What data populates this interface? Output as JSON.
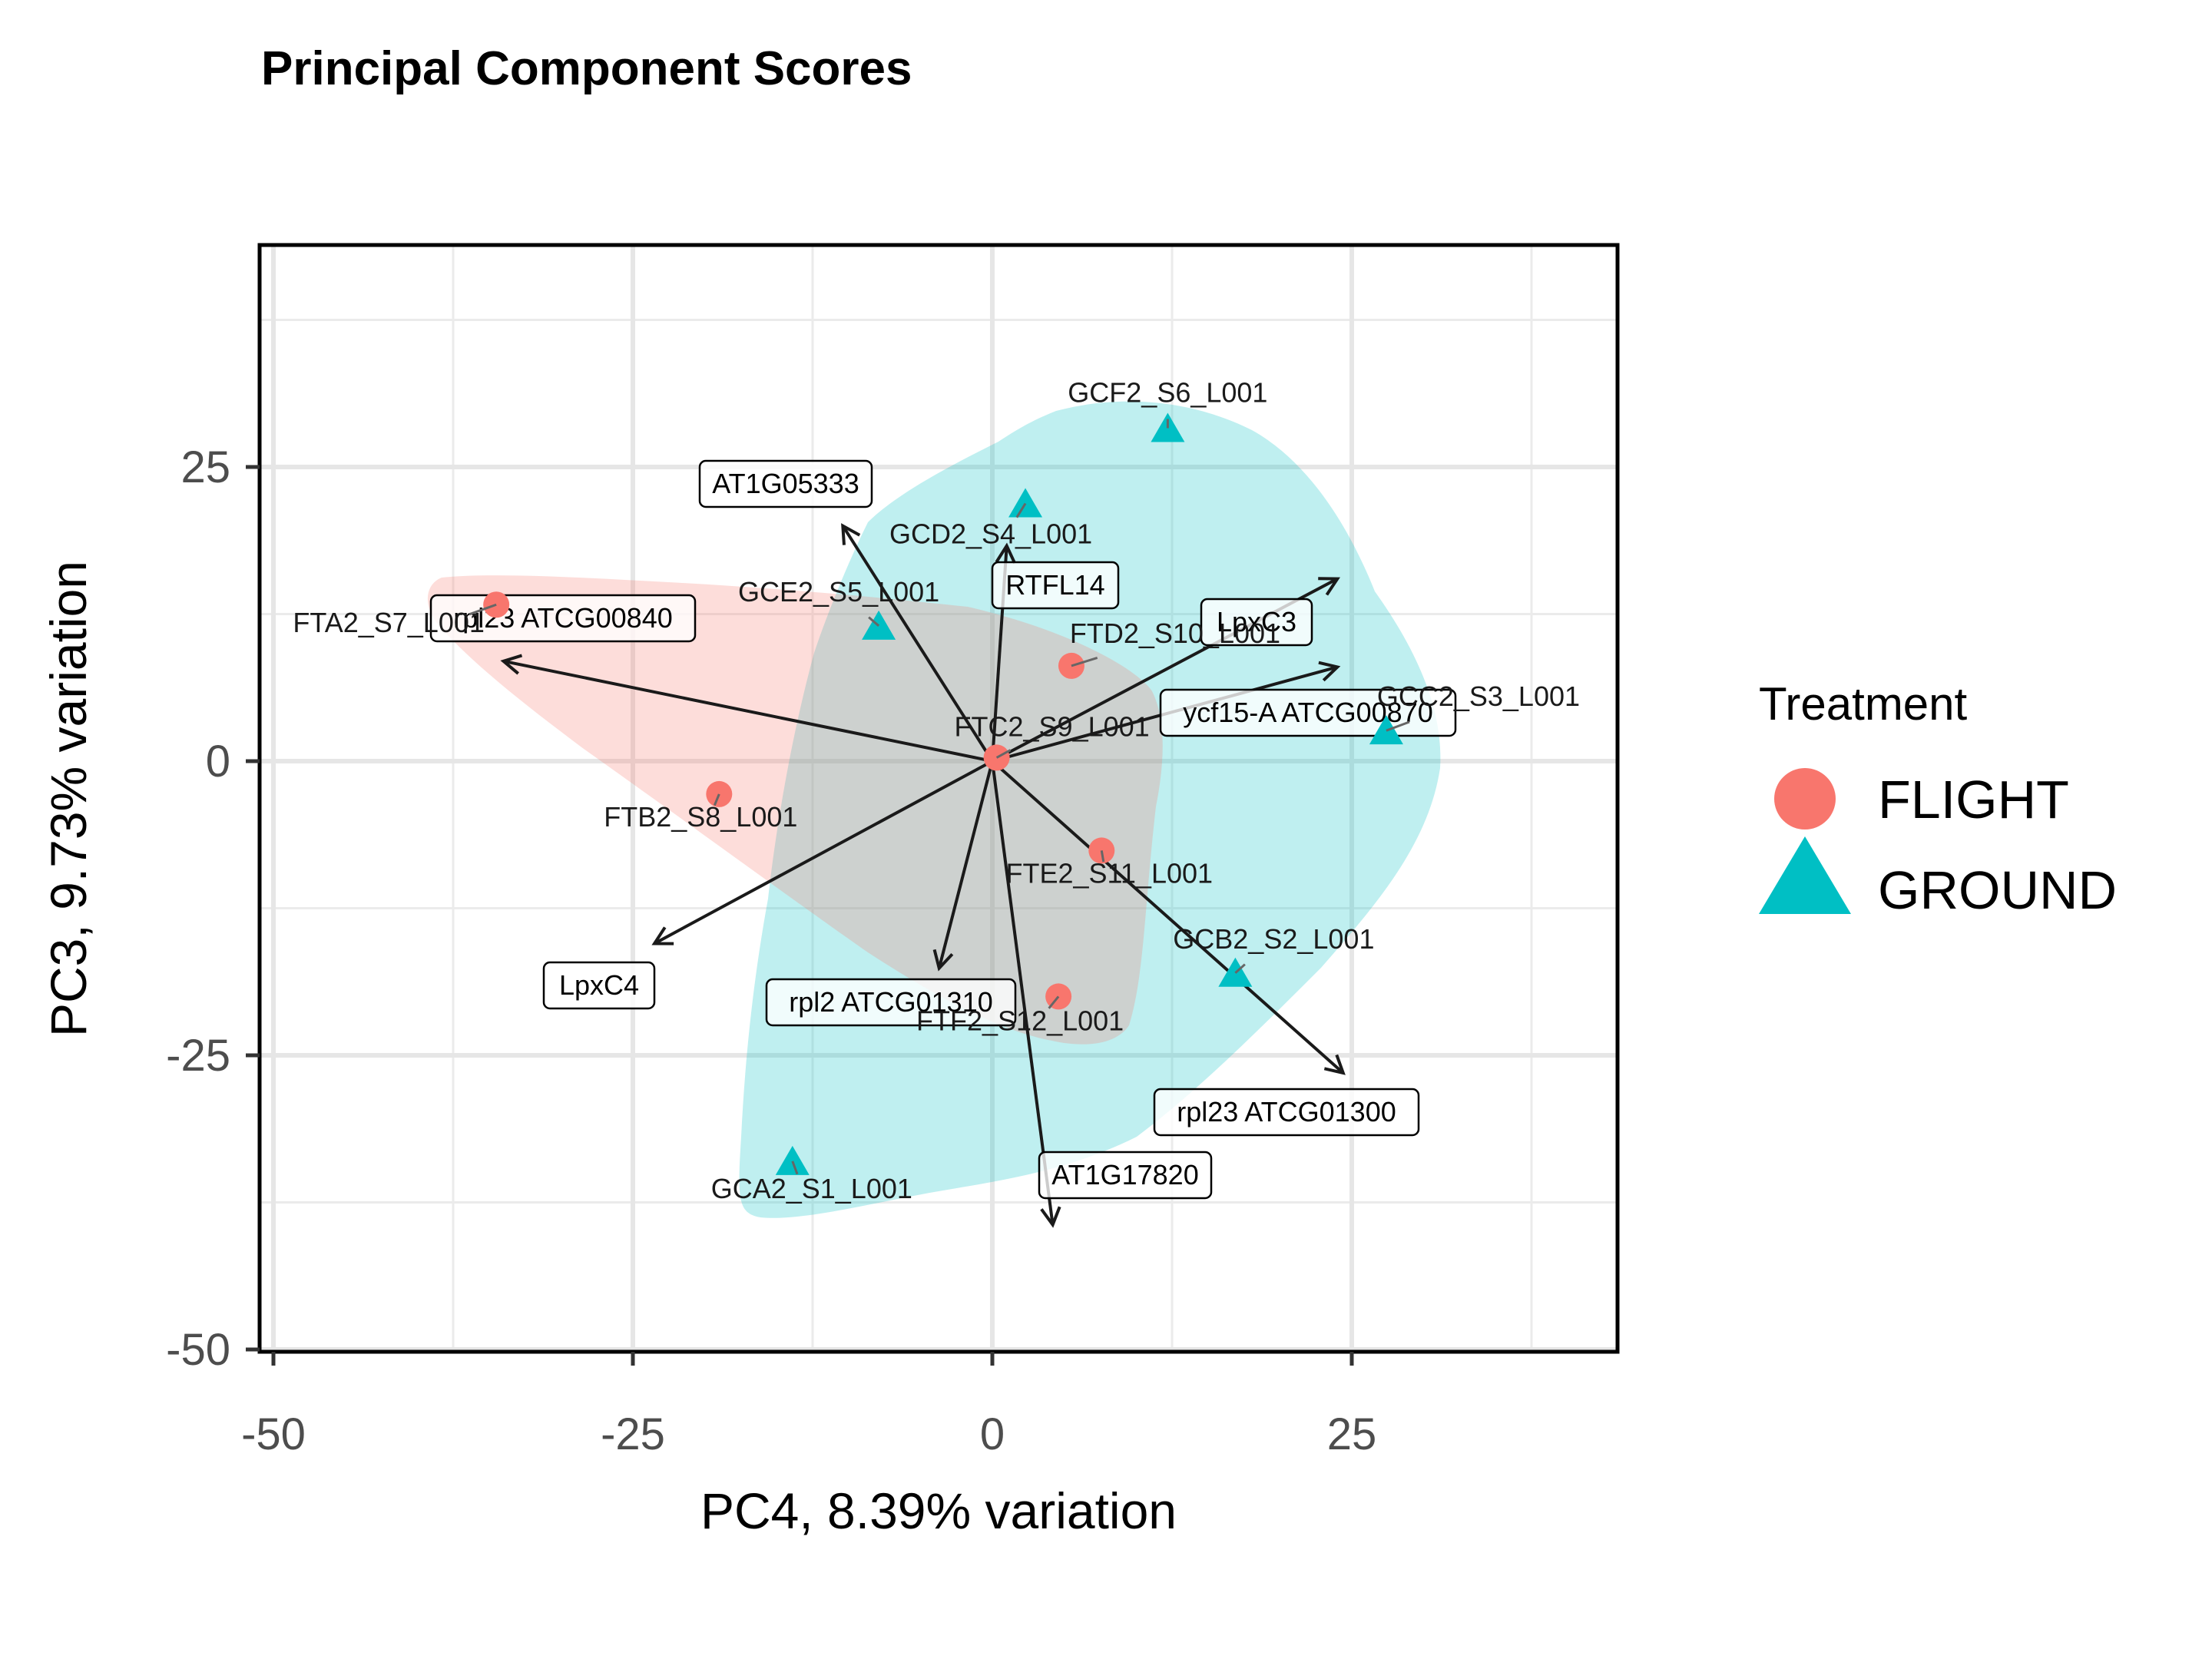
{
  "chart_data": {
    "type": "scatter",
    "title": "Principal Component Scores",
    "xlabel": "PC4, 8.39% variation",
    "ylabel": "PC3, 9.73% variation",
    "xlim": [
      -50,
      44
    ],
    "ylim": [
      -50,
      44
    ],
    "x_ticks": [
      -50,
      -25,
      0,
      25
    ],
    "y_ticks": [
      -50,
      -25,
      0,
      25
    ],
    "x_tick_labels": [
      "-50",
      "-25",
      "0",
      "25"
    ],
    "y_tick_labels": [
      "-50",
      "-25",
      "0",
      "25"
    ],
    "grid": true,
    "legend": {
      "title": "Treatment",
      "position": "right",
      "items": [
        {
          "label": "FLIGHT",
          "color": "#F8766D",
          "shape": "circle"
        },
        {
          "label": "GROUND",
          "color": "#00BFC4",
          "shape": "triangle"
        }
      ]
    },
    "series": [
      {
        "name": "FLIGHT",
        "color": "#F8766D",
        "shape": "circle",
        "points": [
          {
            "label": "FTA2_S7_L001",
            "x": -34.5,
            "y": 13.3
          },
          {
            "label": "FTB2_S8_L001",
            "x": -19.0,
            "y": -2.8
          },
          {
            "label": "FTC2_S9_L001",
            "x": 0.3,
            "y": 0.3
          },
          {
            "label": "FTD2_S10_L001",
            "x": 5.5,
            "y": 8.1
          },
          {
            "label": "FTE2_S11_L001",
            "x": 7.6,
            "y": -7.6
          },
          {
            "label": "FTF2_S12_L001",
            "x": 4.6,
            "y": -20.0
          }
        ]
      },
      {
        "name": "GROUND",
        "color": "#00BFC4",
        "shape": "triangle",
        "points": [
          {
            "label": "GCA2_S1_L001",
            "x": -13.9,
            "y": -34.0
          },
          {
            "label": "GCB2_S2_L001",
            "x": 16.9,
            "y": -18.0
          },
          {
            "label": "GCC2_S3_L001",
            "x": 27.4,
            "y": 2.6
          },
          {
            "label": "GCD2_S4_L001",
            "x": 2.3,
            "y": 21.9
          },
          {
            "label": "GCE2_S5_L001",
            "x": -7.9,
            "y": 11.5
          },
          {
            "label": "GCF2_S6_L001",
            "x": 12.2,
            "y": 28.3
          }
        ]
      }
    ],
    "loadings": [
      {
        "label": "AT1G05333",
        "x": -10.4,
        "y": 20.0
      },
      {
        "label": "RTFL14",
        "x": 1.0,
        "y": 18.3
      },
      {
        "label": "rpl23 ATCG00840",
        "x": -34.0,
        "y": 8.5
      },
      {
        "label": "LpxC3",
        "x": 24.0,
        "y": 15.5
      },
      {
        "label": "ycf15-A ATCG00870",
        "x": 24.0,
        "y": 8.0
      },
      {
        "label": "LpxC4",
        "x": -23.5,
        "y": -15.5
      },
      {
        "label": "rpl2 ATCG01310",
        "x": -3.7,
        "y": -17.6
      },
      {
        "label": "rpl23 ATCG01300",
        "x": 24.4,
        "y": -26.5
      },
      {
        "label": "AT1G17820",
        "x": 4.2,
        "y": -39.4
      }
    ]
  }
}
